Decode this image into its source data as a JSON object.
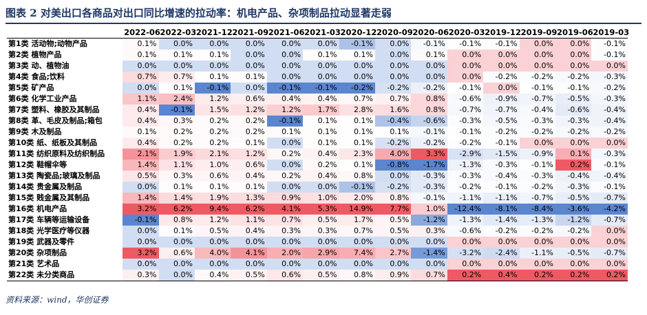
{
  "title": "图表 2  对美出口各商品对出口同比增速的拉动率：机电产品、杂项制品拉动显著走弱",
  "source": "资料来源：wind，华创证券",
  "colors": {
    "negative": "#5b85cf",
    "positive": "#ee5a64",
    "neutral": "#ffffff",
    "title": "#1f3864"
  },
  "chart_data": {
    "type": "heatmap",
    "unit": "%",
    "columns": [
      "2022-06",
      "2022-03",
      "2021-12",
      "2021-09",
      "2021-06",
      "2021-03",
      "2020-12",
      "2020-09",
      "2020-06",
      "2020-03",
      "2019-12",
      "2019-09",
      "2019-06",
      "2019-03"
    ],
    "rows": [
      {
        "label": "第1类 活动物;动物产品",
        "values": [
          0.1,
          0.0,
          0.0,
          0.0,
          0.0,
          0.0,
          -0.1,
          0.0,
          -0.1,
          -0.1,
          -0.1,
          0.0,
          0.0,
          -0.1
        ]
      },
      {
        "label": "第2类 植物产品",
        "values": [
          0.1,
          0.1,
          0.1,
          0.0,
          0.0,
          0.1,
          0.1,
          0.0,
          0.1,
          0.0,
          0.0,
          0.0,
          0.0,
          -0.1
        ]
      },
      {
        "label": "第3类 动、植物油",
        "values": [
          0.0,
          0.0,
          0.0,
          0.0,
          0.0,
          0.0,
          0.0,
          0.0,
          0.0,
          0.0,
          0.0,
          0.0,
          0.0,
          0.0
        ]
      },
      {
        "label": "第4类 食品;饮料",
        "values": [
          0.7,
          0.7,
          0.1,
          0.1,
          0.0,
          0.0,
          0.0,
          0.0,
          0.0,
          0.0,
          -0.2,
          -0.2,
          -0.2,
          -0.3
        ]
      },
      {
        "label": "第5类 矿产品",
        "values": [
          0.0,
          0.1,
          -0.1,
          0.0,
          -0.1,
          -0.1,
          -0.2,
          -0.2,
          -0.2,
          -0.1,
          0.0,
          -0.1,
          -0.1,
          -0.2
        ]
      },
      {
        "label": "第6类 化学工业产品",
        "values": [
          1.1,
          2.4,
          1.2,
          0.6,
          0.4,
          0.4,
          0.7,
          0.7,
          0.8,
          -0.6,
          -0.9,
          -0.7,
          -0.5,
          -0.3
        ]
      },
      {
        "label": "第7类 塑料、橡胶及其制品",
        "values": [
          0.4,
          -0.1,
          1.5,
          1.2,
          1.2,
          1.7,
          2.8,
          1.6,
          0.8,
          -0.7,
          -0.7,
          -0.4,
          -0.6,
          -0.4
        ]
      },
      {
        "label": "第8类 革、毛皮及制品;箱包",
        "values": [
          0.4,
          0.3,
          0.2,
          0.2,
          -0.1,
          0.1,
          0.1,
          -0.4,
          -0.6,
          -0.3,
          -0.5,
          -0.3,
          -0.3,
          -0.4
        ]
      },
      {
        "label": "第9类 木及制品",
        "values": [
          0.1,
          0.2,
          0.2,
          0.2,
          0.1,
          0.1,
          0.1,
          0.1,
          -0.1,
          -0.1,
          -0.2,
          -0.2,
          -0.2,
          -0.2
        ]
      },
      {
        "label": "第10类 纸、纸板及其制品",
        "values": [
          0.4,
          0.2,
          0.2,
          0.1,
          0.0,
          0.1,
          0.1,
          -0.2,
          -0.2,
          -0.2,
          -0.1,
          0.0,
          0.0,
          0.0
        ]
      },
      {
        "label": "第11类 纺织原料及纺织制品",
        "values": [
          2.1,
          1.9,
          2.1,
          1.2,
          0.2,
          0.4,
          2.3,
          4.0,
          3.3,
          -2.9,
          -1.5,
          -0.9,
          0.1,
          -0.3
        ]
      },
      {
        "label": "第12类 鞋帽伞等",
        "values": [
          1.4,
          1.1,
          1.0,
          0.6,
          0.0,
          0.2,
          0.1,
          -0.8,
          -1.7,
          -1.3,
          -0.3,
          -0.1,
          0.2,
          -0.1
        ]
      },
      {
        "label": "第13类 陶瓷品;玻璃及制品",
        "values": [
          0.5,
          0.3,
          0.6,
          0.4,
          0.2,
          0.4,
          0.8,
          0.0,
          -0.3,
          -0.3,
          -0.4,
          -0.3,
          -0.4,
          -0.4
        ]
      },
      {
        "label": "第14类 贵金属及制品",
        "values": [
          0.0,
          0.1,
          0.1,
          0.1,
          0.0,
          0.0,
          -0.1,
          -0.2,
          -0.3,
          -0.2,
          -0.1,
          -0.2,
          -0.3,
          -0.1
        ]
      },
      {
        "label": "第15类 贱金属及其制品",
        "values": [
          1.4,
          1.4,
          1.9,
          1.3,
          0.9,
          1.0,
          2.0,
          0.8,
          -0.1,
          -1.1,
          -1.1,
          -0.7,
          -0.5,
          -0.7
        ]
      },
      {
        "label": "第16类 机电产品",
        "values": [
          3.2,
          6.2,
          9.4,
          6.2,
          4.1,
          5.3,
          14.9,
          7.7,
          1.0,
          -12.4,
          -8.1,
          -8.4,
          -3.6,
          -4.2
        ]
      },
      {
        "label": "第17类 车辆等运输设备",
        "values": [
          -0.1,
          0.8,
          1.2,
          1.1,
          0.7,
          0.5,
          1.7,
          0.5,
          -1.2,
          -1.3,
          -1.4,
          -1.3,
          -1.2,
          -0.7
        ]
      },
      {
        "label": "第18类 光学医疗等仪器",
        "values": [
          0.0,
          0.1,
          0.5,
          0.4,
          0.3,
          0.3,
          0.7,
          0.5,
          0.3,
          -0.6,
          -0.2,
          -0.2,
          -0.2,
          0.0
        ]
      },
      {
        "label": "第19类 武器及零件",
        "values": [
          0.0,
          0.0,
          0.0,
          0.0,
          0.0,
          0.0,
          0.0,
          0.0,
          0.0,
          0.0,
          0.0,
          0.0,
          0.0,
          0.0
        ]
      },
      {
        "label": "第20类 杂项制品",
        "values": [
          3.2,
          0.6,
          4.0,
          4.1,
          2.0,
          2.9,
          7.4,
          2.7,
          -1.4,
          -3.2,
          -2.4,
          -1.1,
          -0.5,
          -0.7
        ]
      },
      {
        "label": "第21类 艺术品",
        "values": [
          0.0,
          0.0,
          0.0,
          0.0,
          0.0,
          0.0,
          0.0,
          0.0,
          0.0,
          0.0,
          0.0,
          0.0,
          0.0,
          0.0
        ]
      },
      {
        "label": "第22类 未分类商品",
        "values": [
          0.3,
          0.0,
          0.4,
          0.5,
          0.6,
          0.5,
          0.8,
          0.9,
          0.7,
          0.2,
          0.4,
          0.2,
          0.2,
          0.2
        ]
      }
    ]
  }
}
